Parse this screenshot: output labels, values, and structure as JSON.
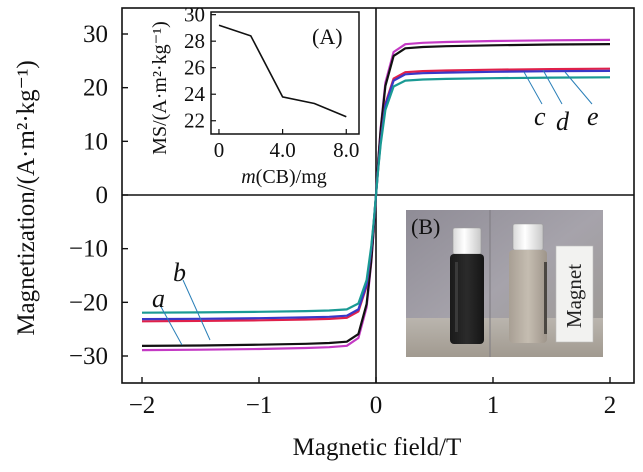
{
  "chart_data": [
    {
      "type": "line",
      "xlabel": "Magnetic field/T",
      "ylabel": "Magnetization/(A·m²·kg⁻¹)",
      "xlim": [
        -2.1,
        2.1
      ],
      "ylim": [
        -35,
        35
      ],
      "xticks": [
        "−2",
        "−1",
        "0",
        "1",
        "2"
      ],
      "xtick_values": [
        -2,
        -1,
        0,
        1,
        2
      ],
      "yticks": [
        "30",
        "20",
        "10",
        "0",
        "−10",
        "−20",
        "−30"
      ],
      "ytick_values": [
        30,
        20,
        10,
        0,
        -10,
        -20,
        -30
      ],
      "series": [
        {
          "name": "a",
          "color": "#c43ac4",
          "ms": 29.0,
          "k": 12
        },
        {
          "name": "b",
          "color": "#111111",
          "ms": 28.2,
          "k": 12
        },
        {
          "name": "c",
          "color": "#e0204a",
          "ms": 23.6,
          "k": 12
        },
        {
          "name": "d",
          "color": "#3838c8",
          "ms": 23.2,
          "k": 12
        },
        {
          "name": "e",
          "color": "#1a9a94",
          "ms": 22.0,
          "k": 12
        }
      ],
      "x": [
        -2.0,
        -1.5,
        -1.0,
        -0.6,
        -0.4,
        -0.25,
        -0.15,
        -0.08,
        -0.04,
        -0.02,
        0.0,
        0.02,
        0.04,
        0.08,
        0.15,
        0.25,
        0.4,
        0.6,
        1.0,
        1.5,
        2.0
      ]
    },
    {
      "type": "line",
      "panel": "(A)",
      "xlabel": "m(CB)/mg",
      "xlabel_var": "m",
      "xlabel_rest": "(CB)/mg",
      "ylabel": "MS/(A·m²·kg⁻¹)",
      "xlim": [
        -0.5,
        8.8
      ],
      "ylim": [
        21,
        30.2
      ],
      "xticks": [
        "0",
        "4.0",
        "8.0"
      ],
      "xtick_values": [
        0,
        4,
        8
      ],
      "yticks": [
        "30",
        "28",
        "26",
        "24",
        "22"
      ],
      "ytick_values": [
        30,
        28,
        26,
        24,
        22
      ],
      "x": [
        0,
        2,
        4,
        6,
        8
      ],
      "values": [
        29.2,
        28.4,
        23.8,
        23.3,
        22.3
      ]
    }
  ],
  "curve_labels": [
    "a",
    "b",
    "c",
    "d",
    "e"
  ],
  "panel_b": {
    "letter": "(B)",
    "magnet_label": "Magnet"
  }
}
